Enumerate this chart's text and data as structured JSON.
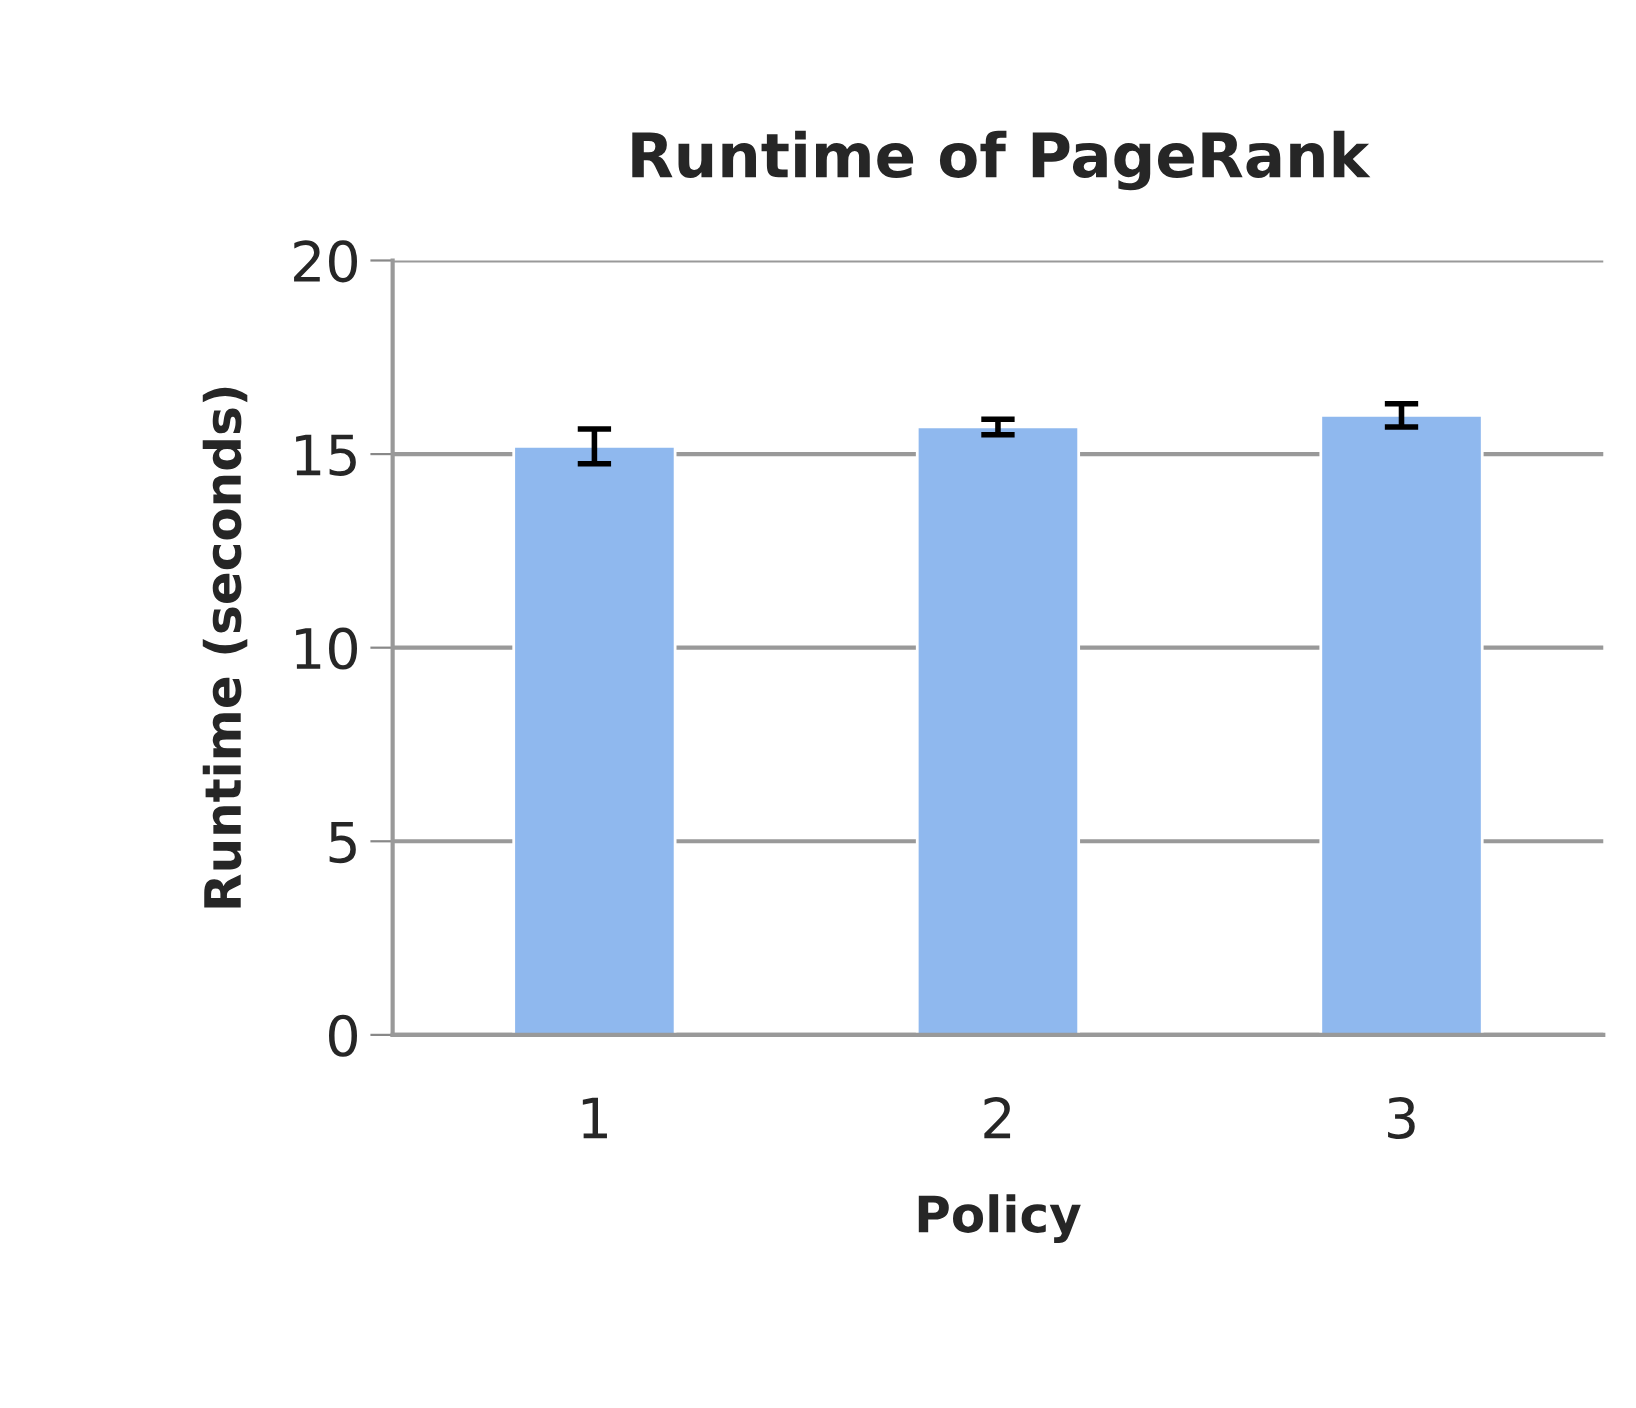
{
  "chart_data": {
    "type": "bar",
    "title": "Runtime of PageRank",
    "xlabel": "Policy",
    "ylabel": "Runtime (seconds)",
    "categories": [
      "1",
      "2",
      "3"
    ],
    "values": [
      15.2,
      15.7,
      16.0
    ],
    "errors": [
      0.45,
      0.2,
      0.3
    ],
    "color": "#8fb8ee",
    "ylim": [
      0,
      20
    ],
    "yticks": [
      0,
      5,
      10,
      15,
      20
    ],
    "grid": "y"
  }
}
